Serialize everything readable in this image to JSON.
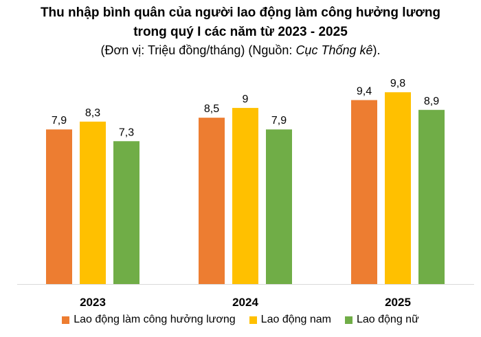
{
  "title": {
    "line1": "Thu nhập bình quân của người lao động làm công hưởng lương",
    "line2": "trong quý I các năm từ 2023 - 2025",
    "subtitle_prefix": "(Đơn vị: Triệu đồng/tháng) (Nguồn: ",
    "subtitle_source": "Cục Thống kê",
    "subtitle_suffix": ")."
  },
  "chart_data": {
    "type": "bar",
    "categories": [
      "2023",
      "2024",
      "2025"
    ],
    "series": [
      {
        "name": "Lao động làm công hưởng lương",
        "color": "#ED7D31",
        "values": [
          7.9,
          8.5,
          9.4
        ],
        "labels": [
          "7,9",
          "8,5",
          "9,4"
        ]
      },
      {
        "name": "Lao động nam",
        "color": "#FFC000",
        "values": [
          8.3,
          9,
          9.8
        ],
        "labels": [
          "8,3",
          "9",
          "9,8"
        ]
      },
      {
        "name": "Lao động nữ",
        "color": "#70AD47",
        "values": [
          7.3,
          7.9,
          8.9
        ],
        "labels": [
          "7,3",
          "7,9",
          "8,9"
        ]
      }
    ],
    "ylim": [
      0,
      11
    ],
    "grid": false,
    "legend_position": "bottom"
  }
}
